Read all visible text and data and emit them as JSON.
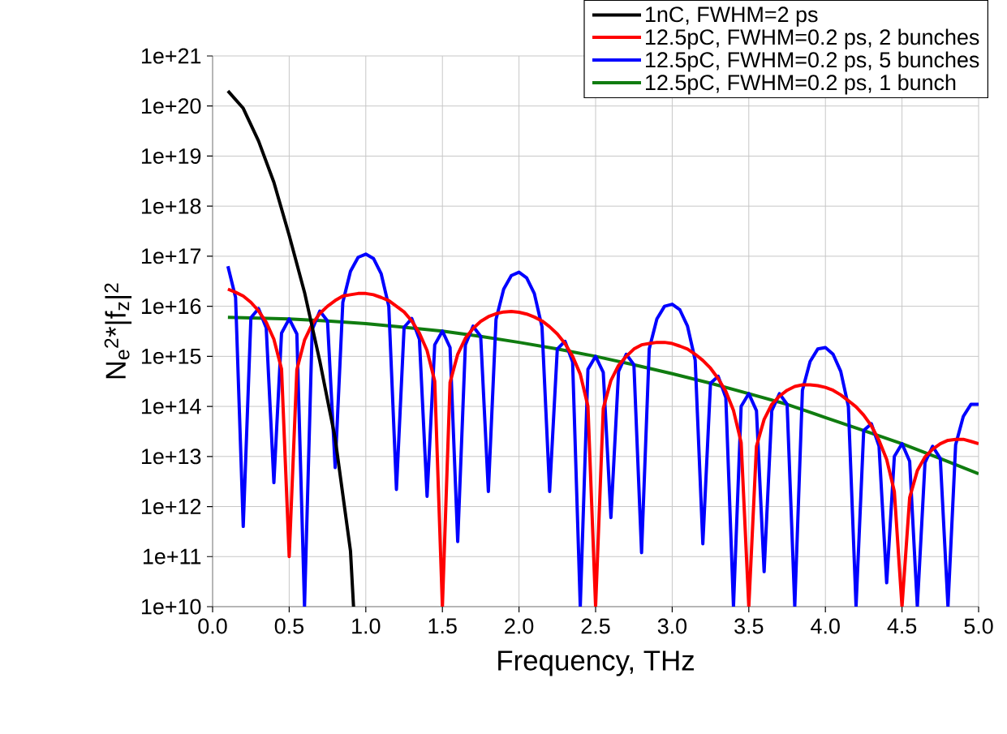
{
  "chart_data": {
    "type": "line",
    "xlabel": "Frequency, THz",
    "ylabel": "N$_{e}$$^{2}$*|f$_{z}$|$^{2}$",
    "log": "y",
    "grid": true,
    "legend": "top right",
    "marker": "none",
    "line_style": "solid",
    "xlim": [
      0,
      5
    ],
    "ylim": [
      10000000000.0,
      1e+21
    ],
    "xticks": [
      {
        "value": 0,
        "label": "0.0"
      },
      {
        "value": 0.5,
        "label": "0.5"
      },
      {
        "value": 1,
        "label": "1.0"
      },
      {
        "value": 1.5,
        "label": "1.5"
      },
      {
        "value": 2,
        "label": "2.0"
      },
      {
        "value": 2.5,
        "label": "2.5"
      },
      {
        "value": 3,
        "label": "3.0"
      },
      {
        "value": 3.5,
        "label": "3.5"
      },
      {
        "value": 4,
        "label": "4.0"
      },
      {
        "value": 4.5,
        "label": "4.5"
      },
      {
        "value": 5,
        "label": "5.0"
      }
    ],
    "yticks": [
      {
        "value": 10000000000.0,
        "label": "1e+10"
      },
      {
        "value": 100000000000.0,
        "label": "1e+11"
      },
      {
        "value": 1000000000000.0,
        "label": "1e+12"
      },
      {
        "value": 10000000000000.0,
        "label": "1e+13"
      },
      {
        "value": 100000000000000.0,
        "label": "1e+14"
      },
      {
        "value": 1000000000000000.0,
        "label": "1e+15"
      },
      {
        "value": 1e+16,
        "label": "1e+16"
      },
      {
        "value": 1e+17,
        "label": "1e+17"
      },
      {
        "value": 1e+18,
        "label": "1e+18"
      },
      {
        "value": 1e+19,
        "label": "1e+19"
      },
      {
        "value": 1e+20,
        "label": "1e+20"
      },
      {
        "value": 1e+21,
        "label": "1e+21"
      }
    ],
    "series": [
      {
        "name": "1nC, FWHM=2 ps",
        "color": "#000000",
        "x": [
          0.1,
          0.2,
          0.3,
          0.4,
          0.5,
          0.6,
          0.7,
          0.8,
          0.9,
          0.92
        ],
        "values": [
          2e+20,
          9e+19,
          2e+19,
          3e+18,
          2.6e+17,
          1.9e+16,
          800000000000000.0,
          23000000000000.0,
          130000000000.0,
          10000000000.0
        ]
      },
      {
        "name": "12.5pC, FWHM=0.2 ps, 2 bunches",
        "color": "#ff0000",
        "x": [
          0.1,
          0.15,
          0.2,
          0.25,
          0.3,
          0.35,
          0.4,
          0.45,
          0.5,
          0.55,
          0.6,
          0.65,
          0.7,
          0.75,
          0.8,
          0.85,
          0.9,
          0.95,
          1.0,
          1.05,
          1.1,
          1.15,
          1.2,
          1.25,
          1.3,
          1.35,
          1.4,
          1.45,
          1.5,
          1.55,
          1.6,
          1.65,
          1.7,
          1.75,
          1.8,
          1.85,
          1.9,
          1.95,
          2.0,
          2.05,
          2.1,
          2.15,
          2.2,
          2.25,
          2.3,
          2.35,
          2.4,
          2.45,
          2.5,
          2.55,
          2.6,
          2.65,
          2.7,
          2.75,
          2.8,
          2.85,
          2.9,
          2.95,
          3.0,
          3.05,
          3.1,
          3.15,
          3.2,
          3.25,
          3.3,
          3.35,
          3.4,
          3.45,
          3.5,
          3.55,
          3.6,
          3.65,
          3.7,
          3.75,
          3.8,
          3.85,
          3.9,
          3.95,
          4.0,
          4.05,
          4.1,
          4.15,
          4.2,
          4.25,
          4.3,
          4.35,
          4.4,
          4.45,
          4.5,
          4.55,
          4.6,
          4.65,
          4.7,
          4.75,
          4.8,
          4.85,
          4.9,
          4.95,
          5.0
        ],
        "values": [
          2.2e+16,
          1.9e+16,
          1.6e+16,
          1.2e+16,
          8100000000000000.0,
          4800000000000000.0,
          2200000000000000.0,
          560000000000000.0,
          100000000000.0,
          540000000000000.0,
          2100000000000000.0,
          4400000000000000.0,
          7200000000000000.0,
          1e+16,
          1.3e+16,
          1.6e+16,
          1.7e+16,
          1.8e+16,
          1.8e+16,
          1.7e+16,
          1.5e+16,
          1.3e+16,
          1e+16,
          7700000000000000.0,
          5100000000000000.0,
          2900000000000000.0,
          1300000000000000.0,
          320000000000000.0,
          10000000000.0,
          300000000000000.0,
          1100000000000000.0,
          2300000000000000.0,
          3600000000000000.0,
          5000000000000000.0,
          6200000000000000.0,
          7100000000000000.0,
          7700000000000000.0,
          7900000000000000.0,
          7600000000000000.0,
          7000000000000000.0,
          6100000000000000.0,
          5100000000000000.0,
          3900000000000000.0,
          2800000000000000.0,
          1800000000000000.0,
          1000000000000000.0,
          440000000000000.0,
          100000000000000.0,
          10000000000.0,
          91000000000000.0,
          330000000000000.0,
          660000000000000.0,
          1000000000000000.0,
          1400000000000000.0,
          1700000000000000.0,
          1800000000000000.0,
          1900000000000000.0,
          1900000000000000.0,
          1800000000000000.0,
          1600000000000000.0,
          1400000000000000.0,
          1100000000000000.0,
          830000000000000.0,
          580000000000000.0,
          360000000000000.0,
          200000000000000.0,
          83000000000000.0,
          19000000000000.0,
          10000000000.0,
          16000000000000.0,
          55000000000000.0,
          110000000000000.0,
          160000000000000.0,
          210000000000000.0,
          250000000000000.0,
          270000000000000.0,
          270000000000000.0,
          260000000000000.0,
          240000000000000.0,
          210000000000000.0,
          170000000000000.0,
          130000000000000.0,
          98000000000000.0,
          67000000000000.0,
          41000000000000.0,
          21000000000000.0,
          8700000000000.0,
          2000000000000.0,
          10000000000.0,
          1500000000000.0,
          5200000000000.0,
          9800000000000.0,
          14000000000000.0,
          18000000000000.0,
          21000000000000.0,
          22000000000000.0,
          22000000000000.0,
          20000000000000.0,
          18000000000000.0
        ]
      },
      {
        "name": "12.5pC, FWHM=0.2 ps, 5 bunches",
        "color": "#0000ff",
        "x": [
          0.1,
          0.15,
          0.2,
          0.25,
          0.3,
          0.35,
          0.4,
          0.45,
          0.5,
          0.55,
          0.6,
          0.65,
          0.7,
          0.75,
          0.8,
          0.85,
          0.9,
          0.95,
          1.0,
          1.05,
          1.1,
          1.15,
          1.2,
          1.25,
          1.3,
          1.35,
          1.4,
          1.45,
          1.5,
          1.55,
          1.6,
          1.65,
          1.7,
          1.75,
          1.8,
          1.85,
          1.9,
          1.95,
          2.0,
          2.05,
          2.1,
          2.15,
          2.2,
          2.25,
          2.3,
          2.35,
          2.4,
          2.45,
          2.5,
          2.55,
          2.6,
          2.65,
          2.7,
          2.75,
          2.8,
          2.85,
          2.9,
          2.95,
          3.0,
          3.05,
          3.1,
          3.15,
          3.2,
          3.25,
          3.3,
          3.35,
          3.4,
          3.45,
          3.5,
          3.55,
          3.6,
          3.65,
          3.7,
          3.75,
          3.8,
          3.85,
          3.9,
          3.95,
          4.0,
          4.05,
          4.1,
          4.15,
          4.2,
          4.25,
          4.3,
          4.35,
          4.4,
          4.45,
          4.5,
          4.55,
          4.6,
          4.65,
          4.7,
          4.75,
          4.8,
          4.85,
          4.9,
          4.95,
          5.0
        ],
        "values": [
          6.3e+16,
          1.5e+16,
          400000000000.0,
          5900000000000000.0,
          9000000000000000.0,
          3700000000000000.0,
          3000000000000.0,
          2900000000000000.0,
          5600000000000000.0,
          2800000000000000.0,
          10000000000.0,
          3400000000000000.0,
          8000000000000000.0,
          5100000000000000.0,
          6000000000000.0,
          1.2e+16,
          5e+16,
          9.5e+16,
          1.1e+17,
          9e+16,
          4.5e+16,
          1e+16,
          2200000000000.0,
          3800000000000000.0,
          5700000000000000.0,
          2200000000000000.0,
          1600000000000.0,
          1700000000000000.0,
          3200000000000000.0,
          1500000000000000.0,
          200000000000.0,
          1700000000000000.0,
          4000000000000000.0,
          2500000000000000.0,
          2000000000000.0,
          5500000000000000.0,
          2.2e+16,
          4.1e+16,
          4.8e+16,
          3.7e+16,
          1.8e+16,
          3900000000000000.0,
          2000000000000.0,
          1400000000000000.0,
          2000000000000000.0,
          770000000000000.0,
          10000000000.0,
          550000000000000.0,
          1000000000000000.0,
          480000000000000.0,
          600000000000.0,
          500000000000000.0,
          1100000000000000.0,
          680000000000000.0,
          120000000000.0,
          1400000000000000.0,
          5600000000000000.0,
          1e+16,
          1.1e+16,
          8500000000000000.0,
          4000000000000000.0,
          840000000000000.0,
          180000000000.0,
          290000000000000.0,
          400000000000000.0,
          150000000000000.0,
          10000000000.0,
          100000000000000.0,
          180000000000000.0,
          82000000000000.0,
          50000000000.0,
          82000000000000.0,
          180000000000000.0,
          110000000000000.0,
          10000000000.0,
          210000000000000.0,
          790000000000000.0,
          1400000000000000.0,
          1500000000000000.0,
          1100000000000000.0,
          500000000000000.0,
          100000000000000.0,
          10000000000.0,
          33000000000000.0,
          45000000000000.0,
          16000000000000.0,
          30000000000.0,
          10000000000000.0,
          18000000000000.0,
          8000000000000.0,
          10000000000.0,
          7500000000000.0,
          16000000000000.0,
          9100000000000.0,
          10000000000.0,
          17000000000000.0,
          63000000000000.0,
          110000000000000.0,
          110000000000000.0
        ]
      },
      {
        "name": "12.5pC, FWHM=0.2 ps, 1 bunch",
        "color": "#107c10",
        "x": [
          0.1,
          0.5,
          0.75,
          1.0,
          1.25,
          1.5,
          1.75,
          2.0,
          2.25,
          2.5,
          2.75,
          3.0,
          3.25,
          3.5,
          3.75,
          4.0,
          4.25,
          4.5,
          4.75,
          5.0
        ],
        "values": [
          6000000000000000.0,
          5600000000000000.0,
          5100000000000000.0,
          4500000000000000.0,
          3800000000000000.0,
          3200000000000000.0,
          2500000000000000.0,
          1900000000000000.0,
          1400000000000000.0,
          1000000000000000.0,
          680000000000000.0,
          450000000000000.0,
          290000000000000.0,
          180000000000000.0,
          110000000000000.0,
          60000000000000.0,
          33000000000000.0,
          18000000000000.0,
          9100000000000.0,
          4500000000000.0
        ]
      }
    ]
  }
}
